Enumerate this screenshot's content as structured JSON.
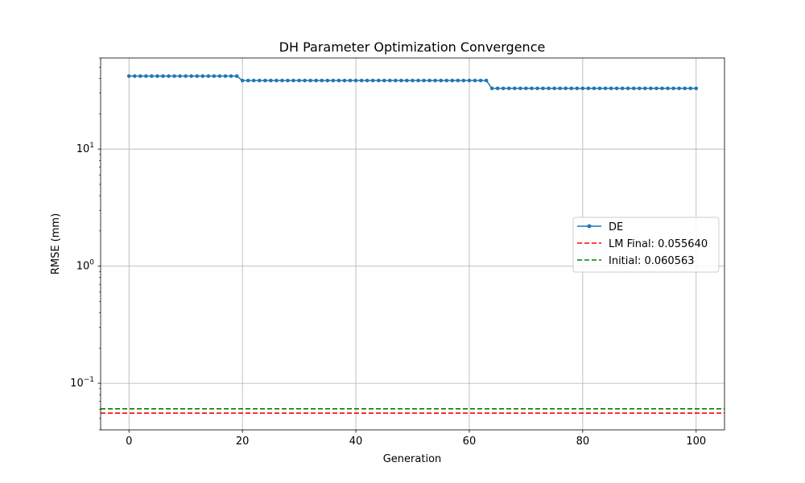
{
  "chart_data": {
    "type": "line",
    "title": "DH Parameter Optimization Convergence",
    "xlabel": "Generation",
    "ylabel": "RMSE (mm)",
    "xlim": [
      -5,
      105
    ],
    "ylim": [
      0.04,
      60
    ],
    "yscale": "log",
    "grid": true,
    "legend_position": "center-right",
    "x_ticks": [
      {
        "value": 0,
        "label": "0"
      },
      {
        "value": 20,
        "label": "20"
      },
      {
        "value": 40,
        "label": "40"
      },
      {
        "value": 60,
        "label": "60"
      },
      {
        "value": 80,
        "label": "80"
      },
      {
        "value": 100,
        "label": "100"
      }
    ],
    "y_ticks": [
      {
        "value": 0.1,
        "base": "10",
        "exp": "−1"
      },
      {
        "value": 1,
        "base": "10",
        "exp": "0"
      },
      {
        "value": 10,
        "base": "10",
        "exp": "1"
      }
    ],
    "series": [
      {
        "name": "DE",
        "kind": "line-marker",
        "color": "#1f77b4",
        "segments": [
          {
            "from": 0,
            "to": 19,
            "value": 42
          },
          {
            "from": 20,
            "to": 63,
            "value": 38.5
          },
          {
            "from": 64,
            "to": 100,
            "value": 33
          }
        ]
      },
      {
        "name": "LM Final: 0.055640",
        "kind": "hline-dashed",
        "color": "#ff0000",
        "value": 0.05564
      },
      {
        "name": "Initial: 0.060563",
        "kind": "hline-dashed",
        "color": "#008000",
        "value": 0.060563
      }
    ]
  }
}
